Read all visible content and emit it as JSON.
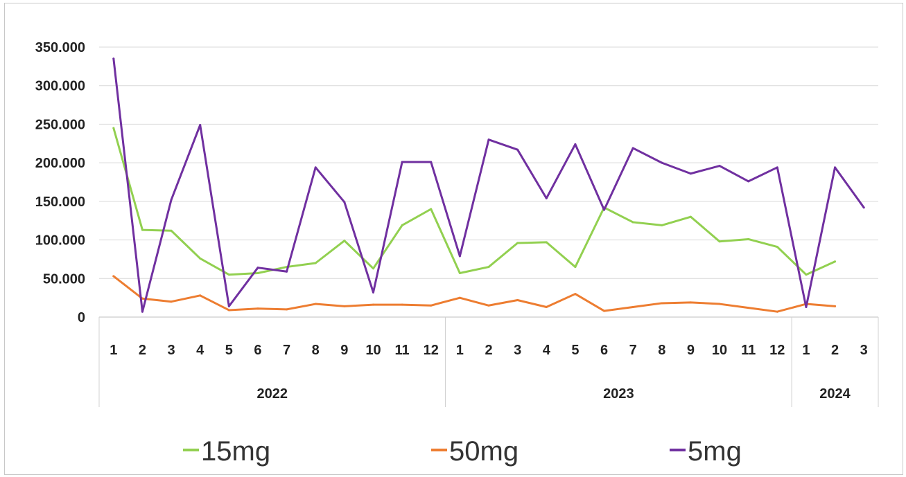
{
  "chart_data": {
    "type": "line",
    "title": "",
    "xlabel": "",
    "ylabel": "",
    "ylim": [
      0,
      350000
    ],
    "y_ticks": [
      0,
      50000,
      100000,
      150000,
      200000,
      250000,
      300000,
      350000
    ],
    "y_tick_labels": [
      "0",
      "50.000",
      "100.000",
      "150.000",
      "200.000",
      "250.000",
      "300.000",
      "350.000"
    ],
    "grid": "horizontal",
    "legend_position": "bottom",
    "categories": [
      "1",
      "2",
      "3",
      "4",
      "5",
      "6",
      "7",
      "8",
      "9",
      "10",
      "11",
      "12",
      "1",
      "2",
      "3",
      "4",
      "5",
      "6",
      "7",
      "8",
      "9",
      "10",
      "11",
      "12",
      "1",
      "2",
      "3"
    ],
    "year_groups": [
      {
        "label": "2022",
        "count": 12
      },
      {
        "label": "2023",
        "count": 12
      },
      {
        "label": "2024",
        "count": 3
      }
    ],
    "series": [
      {
        "name": "15mg",
        "color": "#92d050",
        "values": [
          245000,
          113000,
          112000,
          76000,
          55000,
          57000,
          65000,
          70000,
          99000,
          63000,
          119000,
          140000,
          57000,
          65000,
          96000,
          97000,
          65000,
          142000,
          123000,
          119000,
          130000,
          98000,
          101000,
          91000,
          55000,
          72000,
          null
        ]
      },
      {
        "name": "50mg",
        "color": "#ed7d31",
        "values": [
          53000,
          24000,
          20000,
          28000,
          9000,
          11000,
          10000,
          17000,
          14000,
          16000,
          16000,
          15000,
          25000,
          15000,
          22000,
          13000,
          30000,
          8000,
          13000,
          18000,
          19000,
          17000,
          12000,
          7000,
          17000,
          14000,
          null
        ]
      },
      {
        "name": "5mg",
        "color": "#7030a0",
        "values": [
          335000,
          7000,
          152000,
          249000,
          14000,
          64000,
          59000,
          194000,
          149000,
          32000,
          201000,
          201000,
          79000,
          230000,
          217000,
          154000,
          224000,
          139000,
          219000,
          200000,
          186000,
          196000,
          176000,
          194000,
          13000,
          194000,
          142000
        ]
      }
    ]
  }
}
